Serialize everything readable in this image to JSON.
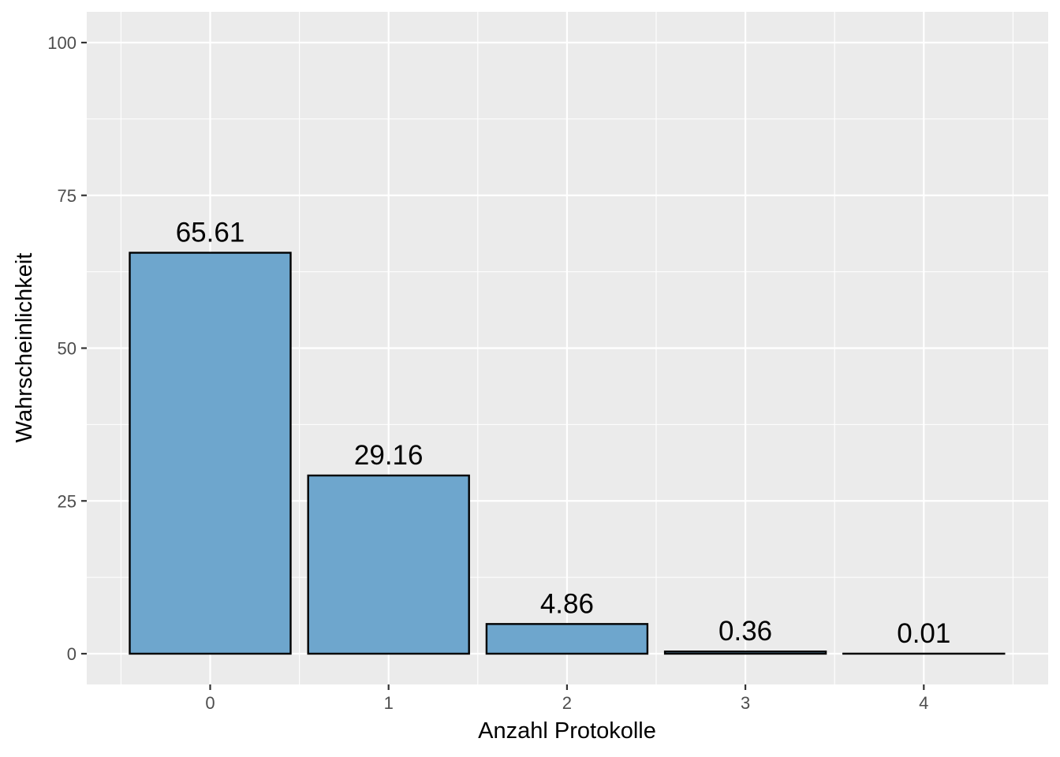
{
  "chart_data": {
    "type": "bar",
    "categories": [
      "0",
      "1",
      "2",
      "3",
      "4"
    ],
    "values": [
      65.61,
      29.16,
      4.86,
      0.36,
      0.01
    ],
    "data_labels": [
      "65.61",
      "29.16",
      "4.86",
      "0.36",
      "0.01"
    ],
    "xlabel": "Anzahl Protokolle",
    "ylabel": "Wahrscheinlichkeit",
    "ylim": [
      0,
      100
    ],
    "yticks": [
      0,
      25,
      50,
      75,
      100
    ],
    "grid": true,
    "colors": {
      "bar_fill": "#6ea6cd",
      "bar_stroke": "#000000",
      "panel_bg": "#ebebeb",
      "grid": "#ffffff"
    }
  }
}
